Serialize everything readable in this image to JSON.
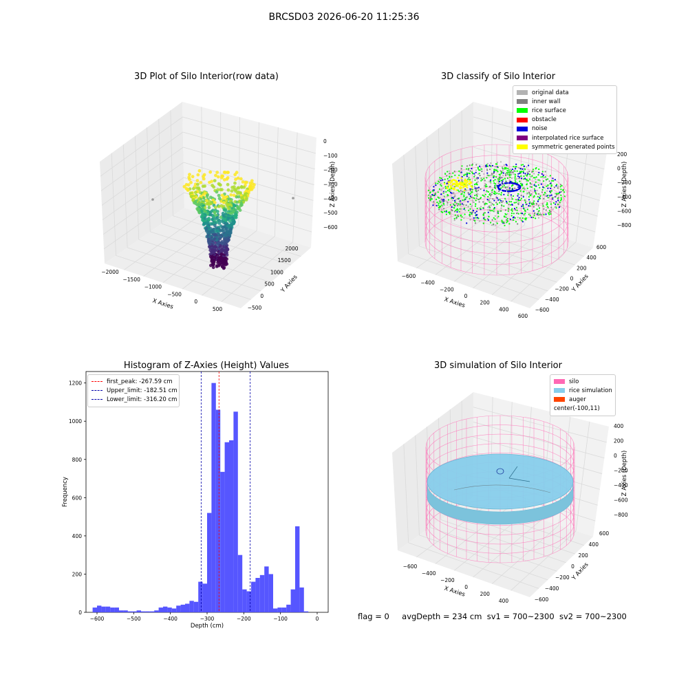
{
  "main_title": "BRCSD03 2026-06-20 11:25:36",
  "footer": {
    "flag": "flag = 0",
    "avg": "avgDepth = 234 cm",
    "sv1": "sv1 = 700~2300",
    "sv2": "sv2 = 700~2300"
  },
  "chart_data": [
    {
      "type": "scatter",
      "title": "3D Plot of Silo Interior(row data)",
      "xlabel": "X Axies",
      "ylabel": "Y Axies",
      "zlabel": "Z Axies (Depth)",
      "x_ticks": [
        "−2000",
        "−1500",
        "−1000",
        "−500",
        "0",
        "500"
      ],
      "y_ticks": [
        "−500",
        "0",
        "500",
        "1000",
        "1500",
        "2000"
      ],
      "z_ticks": [
        "0",
        "−100",
        "−200",
        "−300",
        "−400",
        "−500",
        "−600"
      ],
      "colormap": "viridis",
      "color": "#440154"
    },
    {
      "type": "scatter",
      "title": "3D classify of Silo Interior",
      "xlabel": "X Axies",
      "ylabel": "Y Axies",
      "zlabel": "Z Axies (Depth)",
      "x_ticks": [
        "−600",
        "−400",
        "−200",
        "0",
        "200",
        "400",
        "600"
      ],
      "y_ticks": [
        "−600",
        "−400",
        "−200",
        "0",
        "200",
        "400",
        "600"
      ],
      "z_ticks": [
        "200",
        "0",
        "−200",
        "−400",
        "−600",
        "−800"
      ],
      "legend_position": "top-right",
      "legend": [
        {
          "label": "original data",
          "color": "#b3b3b3"
        },
        {
          "label": "inner wall",
          "color": "#808080"
        },
        {
          "label": "rice surface",
          "color": "#00ff00"
        },
        {
          "label": "obstacle",
          "color": "#ff0000"
        },
        {
          "label": "noise",
          "color": "#0000dd"
        },
        {
          "label": "interpolated rice surface",
          "color": "#800080"
        },
        {
          "label": "symmetric generated points",
          "color": "#ffff00"
        }
      ],
      "wall_color": "#ff69b4"
    },
    {
      "type": "bar",
      "title": "Histogram of Z-Axies (Height) Values",
      "xlabel": "Depth (cm)",
      "ylabel": "Frequency",
      "xlim": [
        -630,
        30
      ],
      "ylim": [
        0,
        1260
      ],
      "x_ticks": [
        "−600",
        "−500",
        "−400",
        "−300",
        "−200",
        "−100",
        "0"
      ],
      "y_ticks": [
        "0",
        "200",
        "400",
        "600",
        "800",
        "1000",
        "1200"
      ],
      "bar_color": "#4d4dff",
      "bin_start": -612,
      "bin_width": 12,
      "counts": [
        25,
        35,
        30,
        30,
        25,
        25,
        10,
        10,
        5,
        5,
        10,
        5,
        5,
        5,
        10,
        25,
        30,
        25,
        20,
        35,
        40,
        45,
        60,
        55,
        160,
        150,
        520,
        1200,
        1060,
        735,
        890,
        900,
        1050,
        300,
        120,
        110,
        160,
        180,
        195,
        240,
        200,
        20,
        25,
        25,
        40,
        120,
        450,
        130,
        5
      ],
      "lines": [
        {
          "label": "first_peak: -267.59 cm",
          "x": -267.59,
          "color": "#ff0000"
        },
        {
          "label": "Upper_limit: -182.51 cm",
          "x": -182.51,
          "color": "#0000aa"
        },
        {
          "label": "Lower_limit: -316.20 cm",
          "x": -316.2,
          "color": "#0000aa"
        }
      ],
      "legend_position": "upper-left"
    },
    {
      "type": "scatter",
      "title": "3D simulation of Silo Interior",
      "xlabel": "X Axies",
      "ylabel": "Y Axies",
      "zlabel": "Z Axies (Depth)",
      "x_ticks": [
        "−600",
        "−400",
        "−200",
        "0",
        "200",
        "400"
      ],
      "y_ticks": [
        "−600",
        "−400",
        "−200",
        "0",
        "200",
        "400",
        "600"
      ],
      "z_ticks": [
        "400",
        "200",
        "0",
        "−200",
        "−400",
        "−600",
        "−800"
      ],
      "legend_position": "top-right",
      "legend": [
        {
          "label": "silo",
          "color": "#ff69b4"
        },
        {
          "label": "rice simulation",
          "color": "#87ceeb"
        },
        {
          "label": "auger",
          "color": "#ff4500"
        },
        {
          "label": "center(-100,11)",
          "color": ""
        }
      ],
      "surface_color": "#87ceeb",
      "wall_color": "#ff69b4"
    }
  ]
}
